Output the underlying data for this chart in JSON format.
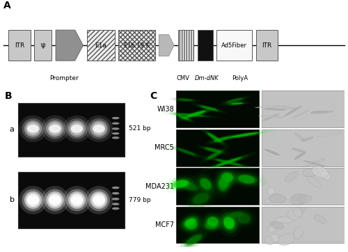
{
  "panel_A_label": "A",
  "panel_B_label": "B",
  "panel_C_label": "C",
  "label_prompter": "Prompter",
  "label_cmv": "CMV",
  "label_dmnk": "Dm-dNK",
  "label_polya": "PolyA",
  "gel_a_label": "a",
  "gel_b_label": "b",
  "gel_a_bp": "521 bp",
  "gel_b_bp": "779 bp",
  "cell_labels": [
    "WI38",
    "MRC5",
    "MDA231",
    "MCF7"
  ],
  "bg_color": "#ffffff"
}
